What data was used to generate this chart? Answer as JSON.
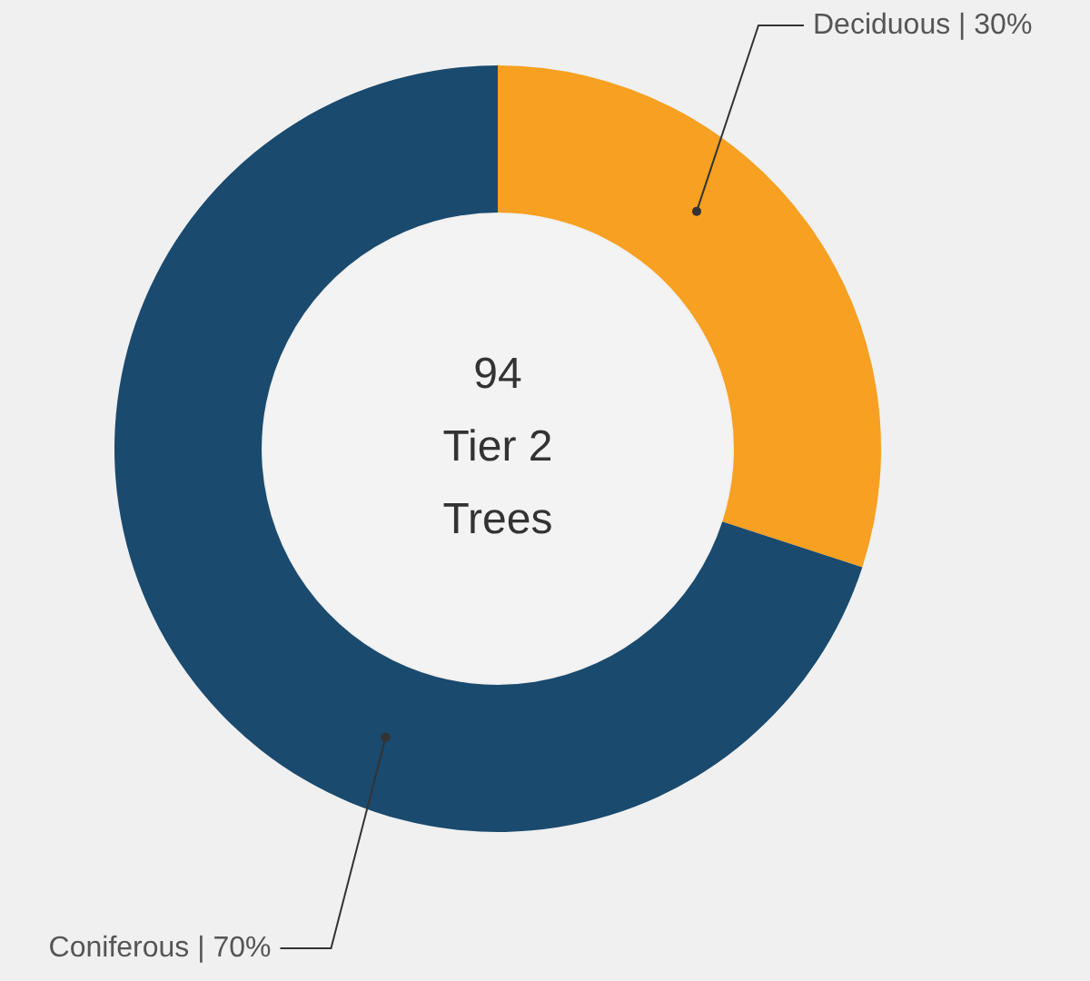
{
  "chart_data": {
    "type": "donut",
    "categories": [
      "Deciduous | 30%",
      "Coniferous | 70%"
    ],
    "values": [
      30,
      70
    ],
    "colors": [
      "#f7a021",
      "#1a4a6e"
    ],
    "annotations": [
      "94",
      "Tier 2",
      "Trees"
    ],
    "legend": false
  }
}
